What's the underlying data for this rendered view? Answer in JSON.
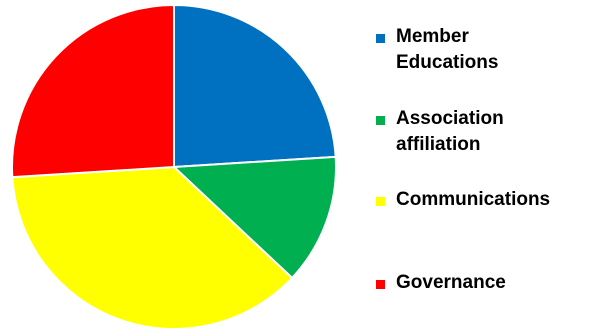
{
  "chart_data": {
    "type": "pie",
    "title": "",
    "start_angle_deg": 0,
    "direction": "clockwise",
    "legend_position": "right",
    "slices": [
      {
        "label": "Member\nEducations",
        "value": 24,
        "color": "#0070c0"
      },
      {
        "label": "Association\naffiliation",
        "value": 13,
        "color": "#00b050"
      },
      {
        "label": "Communications",
        "value": 37,
        "color": "#ffff00"
      },
      {
        "label": "Governance",
        "value": 26,
        "color": "#ff0000"
      }
    ]
  }
}
